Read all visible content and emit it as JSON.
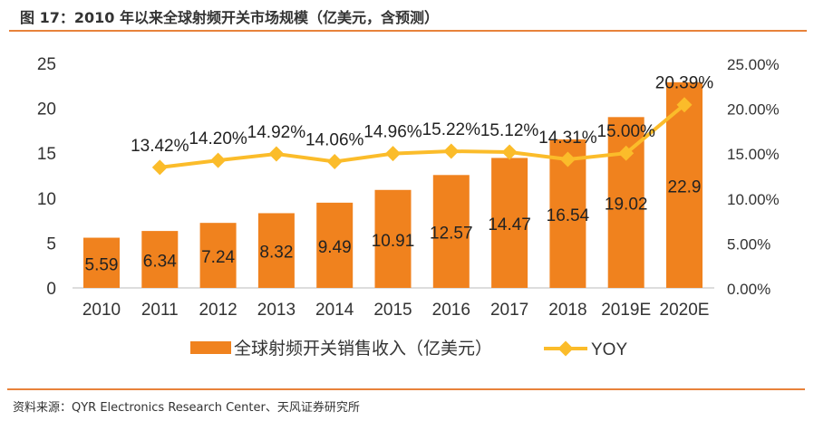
{
  "title": "图 17：2010 年以来全球射频开关市场规模（亿美元，含预测）",
  "source": "资料来源：QYR Electronics Research Center、天风证券研究所",
  "colors": {
    "bar": "#f0821e",
    "line": "#fbbc2a",
    "rule": "#e8823a"
  },
  "chart_data": {
    "type": "bar+line",
    "categories": [
      "2010",
      "2011",
      "2012",
      "2013",
      "2014",
      "2015",
      "2016",
      "2017",
      "2018",
      "2019E",
      "2020E"
    ],
    "series": [
      {
        "name": "全球射频开关销售收入（亿美元）",
        "type": "bar",
        "axis": "left",
        "values": [
          5.59,
          6.34,
          7.24,
          8.32,
          9.49,
          10.91,
          12.57,
          14.47,
          16.54,
          19.02,
          22.9
        ],
        "labels": [
          "5.59",
          "6.34",
          "7.24",
          "8.32",
          "9.49",
          "10.91",
          "12.57",
          "14.47",
          "16.54",
          "19.02",
          "22.9"
        ]
      },
      {
        "name": "YOY",
        "type": "line",
        "axis": "right",
        "values": [
          null,
          13.42,
          14.2,
          14.92,
          14.06,
          14.96,
          15.22,
          15.12,
          14.31,
          15.0,
          20.39
        ],
        "labels": [
          "",
          "13.42%",
          "14.20%",
          "14.92%",
          "14.06%",
          "14.96%",
          "15.22%",
          "15.12%",
          "14.31%",
          "15.00%",
          "20.39%"
        ]
      }
    ],
    "left_axis": {
      "ylim": [
        0,
        25
      ],
      "ticks": [
        "0",
        "5",
        "10",
        "15",
        "20",
        "25"
      ]
    },
    "right_axis": {
      "ylim": [
        0,
        25
      ],
      "ticks": [
        "0.00%",
        "5.00%",
        "10.00%",
        "15.00%",
        "20.00%",
        "25.00%"
      ]
    },
    "grid": false,
    "legend": "bottom"
  }
}
